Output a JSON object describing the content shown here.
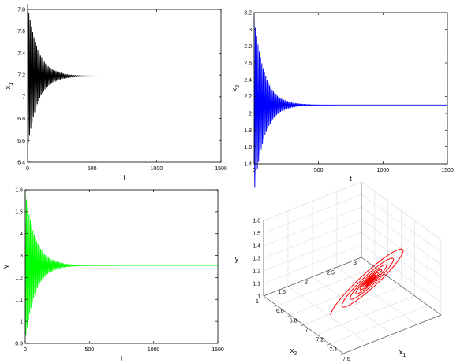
{
  "chart_data": [
    {
      "type": "line",
      "id": "p1",
      "xlabel": "t",
      "ylabel": "x",
      "ylabel_sub": "1",
      "xlim": [
        0,
        1500
      ],
      "ylim": [
        6.4,
        7.8
      ],
      "xticks": [
        0,
        500,
        1000,
        1500
      ],
      "yticks": [
        6.4,
        6.6,
        6.8,
        7,
        7.2,
        7.4,
        7.6,
        7.8
      ],
      "ytick_labels": [
        "6.4",
        "6.6",
        "6.8",
        "7",
        "7.2",
        "7.4",
        "7.6",
        "7.8"
      ],
      "series": [
        {
          "color": "#000000",
          "equilibrium": 7.19,
          "amplitude0": 0.66,
          "period": 10,
          "decay_time": 80
        }
      ]
    },
    {
      "type": "line",
      "id": "p2",
      "xlabel": "t",
      "ylabel": "x",
      "ylabel_sub": "2",
      "xlim": [
        0,
        1500
      ],
      "ylim": [
        1.4,
        3.2
      ],
      "xticks": [
        0,
        500,
        1000,
        1500
      ],
      "yticks": [
        1.4,
        1.6,
        1.8,
        2,
        2.2,
        2.4,
        2.6,
        2.8,
        3,
        3.2
      ],
      "ytick_labels": [
        "1.4",
        "1.6",
        "1.8",
        "2",
        "2.2",
        "2.4",
        "2.6",
        "2.8",
        "3",
        "3.2"
      ],
      "series": [
        {
          "color": "#0000ff",
          "equilibrium": 2.1,
          "amplitude0": 1.05,
          "period": 10,
          "decay_time": 80
        }
      ]
    },
    {
      "type": "line",
      "id": "p3",
      "xlabel": "t",
      "ylabel": "y",
      "ylabel_sub": "",
      "xlim": [
        0,
        1500
      ],
      "ylim": [
        0.9,
        1.6
      ],
      "xticks": [
        0,
        500,
        1000,
        1500
      ],
      "yticks": [
        0.9,
        1,
        1.1,
        1.2,
        1.3,
        1.4,
        1.5,
        1.6
      ],
      "ytick_labels": [
        "0.9",
        "1",
        "1.1",
        "1.2",
        "1.3",
        "1.4",
        "1.5",
        "1.6"
      ],
      "series": [
        {
          "color": "#00ff00",
          "equilibrium": 1.255,
          "amplitude0": 0.34,
          "period": 10,
          "decay_time": 80
        }
      ]
    },
    {
      "type": "line3d",
      "id": "p4",
      "xlabel": "x",
      "xlabel_sub": "1",
      "ylabel": "x",
      "ylabel_sub": "2",
      "zlabel": "y",
      "xlim": [
        6.4,
        7.6
      ],
      "ylim": [
        1,
        3
      ],
      "zlim": [
        1,
        1.6
      ],
      "xticks": [
        6.6,
        6.8,
        7,
        7.2,
        7.4,
        7.6
      ],
      "xtick_labels": [
        "6.6",
        "6.8",
        "7",
        "7.2",
        "7.4",
        "7.6"
      ],
      "yticks": [
        1,
        1.5,
        2,
        2.5,
        3
      ],
      "ytick_labels": [
        "1",
        "1.5",
        "2",
        "2.5",
        "3"
      ],
      "zticks": [
        1,
        1.1,
        1.2,
        1.3,
        1.4,
        1.5,
        1.6
      ],
      "ztick_labels": [
        "1",
        "1.1",
        "1.2",
        "1.3",
        "1.4",
        "1.5",
        "1.6"
      ],
      "grid": true,
      "series": [
        {
          "color": "#ff0000",
          "center": [
            7.19,
            2.1,
            1.255
          ],
          "start": [
            7.06,
            1.47,
            1.03
          ],
          "turns": 11
        }
      ]
    }
  ]
}
